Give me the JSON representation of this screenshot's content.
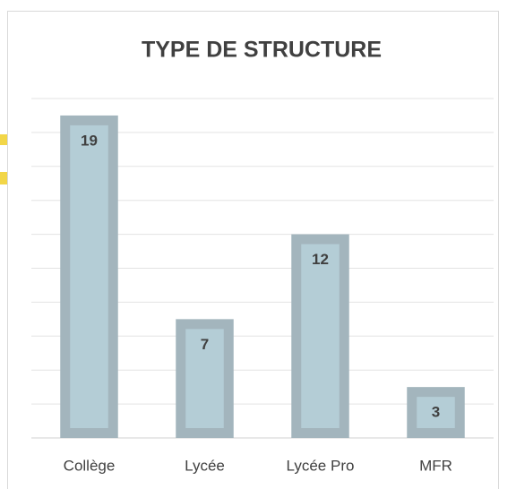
{
  "chart_data": {
    "type": "bar",
    "title": "TYPE DE STRUCTURE",
    "categories": [
      "Collège",
      "Lycée",
      "Lycée Pro",
      "MFR"
    ],
    "values": [
      19,
      7,
      12,
      3
    ],
    "color": "#b4cdd6",
    "edge_color": "#a3b5bd",
    "ylim": [
      0,
      20
    ],
    "yticks": [
      0,
      2,
      4,
      6,
      8,
      10,
      12,
      14,
      16,
      18,
      20
    ],
    "grid": true
  }
}
